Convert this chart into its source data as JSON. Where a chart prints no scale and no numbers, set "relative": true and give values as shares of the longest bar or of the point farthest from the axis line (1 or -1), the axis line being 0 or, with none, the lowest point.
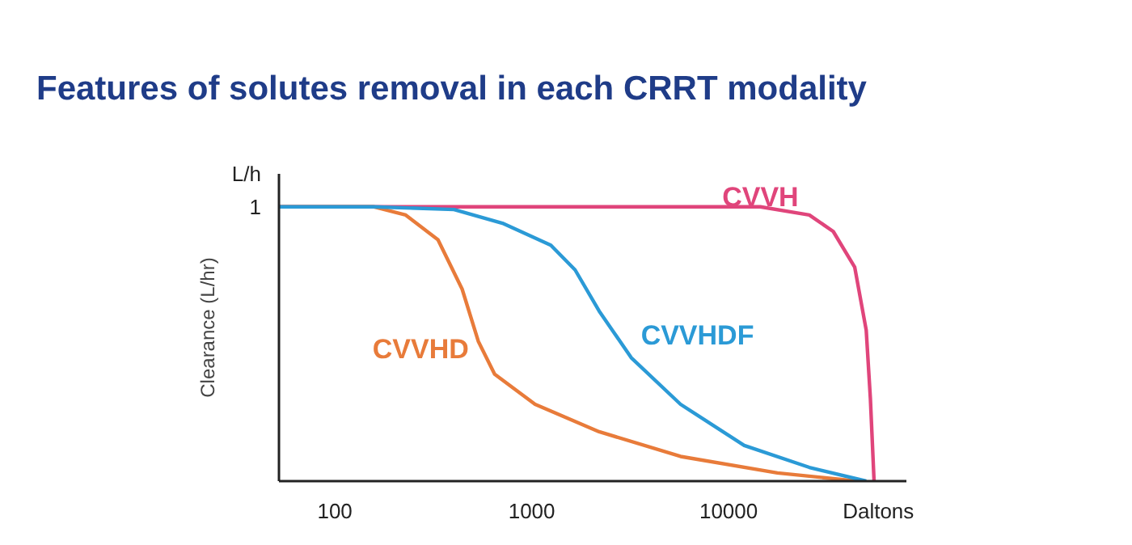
{
  "chart_data": {
    "type": "line",
    "title": "Features of solutes removal in each CRRT modality",
    "ylabel": "Clearance (L/hr)",
    "annotations": [
      "L/h",
      "1"
    ],
    "relative": true,
    "log": "x",
    "grid": false,
    "marker": "none",
    "line_style": "solid",
    "xlim": [
      52,
      80000
    ],
    "xlabel": "Daltons",
    "xticks": [
      100,
      1000,
      10000
    ],
    "series": [
      {
        "name": "CVVH",
        "color": "#e0457b",
        "x": [
          52,
          1000,
          14500,
          25700,
          34000,
          43700,
          50000,
          52500,
          54800
        ],
        "values": [
          1,
          1,
          1,
          0.97,
          0.91,
          0.78,
          0.55,
          0.3,
          0
        ]
      },
      {
        "name": "CVVHD",
        "color": "#e87b3a",
        "x": [
          52,
          157,
          229,
          334,
          443,
          535,
          648,
          1040,
          2200,
          5700,
          17700,
          45000
        ],
        "values": [
          1,
          1,
          0.97,
          0.88,
          0.7,
          0.51,
          0.39,
          0.28,
          0.18,
          0.09,
          0.03,
          0
        ]
      },
      {
        "name": "CVVHDF",
        "color": "#2b9ad6",
        "x": [
          52,
          157,
          403,
          710,
          1250,
          1660,
          2200,
          3200,
          5700,
          12000,
          25700,
          50000
        ],
        "values": [
          1,
          1,
          0.99,
          0.94,
          0.86,
          0.77,
          0.62,
          0.45,
          0.28,
          0.13,
          0.05,
          0
        ]
      }
    ]
  }
}
